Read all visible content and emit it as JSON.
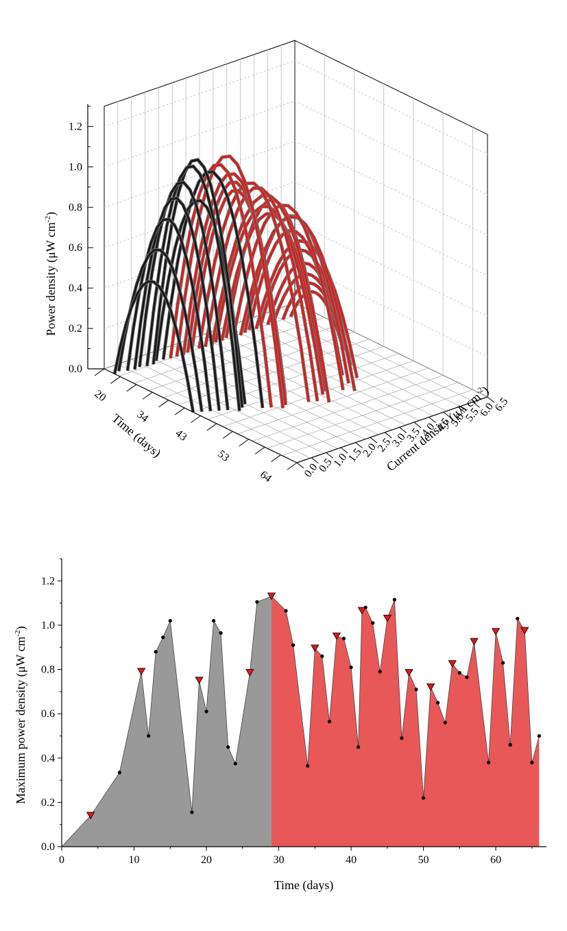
{
  "chart_data": [
    {
      "type": "line",
      "projection": "3d-waterfall",
      "zlabel_main": "Power density (μW cm",
      "zlabel_sup": "-2",
      "zlabel_end": ")",
      "xlabel_main": "Current density (μA cm",
      "xlabel_sup": "-2",
      "xlabel_end": ")",
      "ylabel": "Time (days)",
      "z_ticks": [
        "0.0",
        "0.2",
        "0.4",
        "0.6",
        "0.8",
        "1.0",
        "1.2"
      ],
      "x_ticks": [
        "0.0",
        "0.5",
        "1.0",
        "1.5",
        "2.0",
        "2.5",
        "3.0",
        "3.5",
        "4.0",
        "4.5",
        "5.0",
        "5.5",
        "6.0",
        "6.5"
      ],
      "y_ticks": [
        "20",
        "34",
        "43",
        "53",
        "64"
      ],
      "zlim": [
        0,
        1.3
      ],
      "xlim": [
        0,
        6.5
      ],
      "grid": true,
      "series_colors": {
        "before": "#1a1a1a",
        "after": "#d42020"
      },
      "curves_summary": "one power-density curve per measurement day; black curves for early days, red curves for later days"
    },
    {
      "type": "area",
      "xlabel": "Time (days)",
      "ylabel_main": "Maximum power density (μW cm",
      "ylabel_sup": "-2",
      "ylabel_end": ")",
      "xlim": [
        0,
        67
      ],
      "ylim": [
        0,
        1.3
      ],
      "x_ticks": [
        0,
        10,
        20,
        30,
        40,
        50,
        60
      ],
      "y_ticks": [
        "0.0",
        "0.2",
        "0.4",
        "0.6",
        "0.8",
        "1.0",
        "1.2"
      ],
      "split_day": 29,
      "colors": {
        "before": "#999999",
        "after": "#e85858",
        "triangle": "#e01818",
        "point": "#000000"
      },
      "points": [
        {
          "x": 0,
          "y": 0.0
        },
        {
          "x": 4,
          "y": 0.14,
          "marker": "triangle"
        },
        {
          "x": 8,
          "y": 0.335
        },
        {
          "x": 11,
          "y": 0.79,
          "marker": "triangle"
        },
        {
          "x": 12,
          "y": 0.5
        },
        {
          "x": 13,
          "y": 0.88
        },
        {
          "x": 14,
          "y": 0.945
        },
        {
          "x": 15,
          "y": 1.02
        },
        {
          "x": 18,
          "y": 0.155
        },
        {
          "x": 19,
          "y": 0.75,
          "marker": "triangle"
        },
        {
          "x": 20,
          "y": 0.61
        },
        {
          "x": 21,
          "y": 1.02
        },
        {
          "x": 22,
          "y": 0.965
        },
        {
          "x": 23,
          "y": 0.45
        },
        {
          "x": 24,
          "y": 0.375
        },
        {
          "x": 26,
          "y": 0.785,
          "marker": "triangle"
        },
        {
          "x": 27,
          "y": 1.105
        },
        {
          "x": 29,
          "y": 1.13,
          "marker": "triangle"
        },
        {
          "x": 31,
          "y": 1.065
        },
        {
          "x": 32,
          "y": 0.91
        },
        {
          "x": 34,
          "y": 0.365
        },
        {
          "x": 35,
          "y": 0.895,
          "marker": "triangle"
        },
        {
          "x": 36,
          "y": 0.86
        },
        {
          "x": 37,
          "y": 0.565
        },
        {
          "x": 38,
          "y": 0.95,
          "marker": "triangle"
        },
        {
          "x": 39,
          "y": 0.94
        },
        {
          "x": 40,
          "y": 0.81
        },
        {
          "x": 41,
          "y": 0.45
        },
        {
          "x": 41.5,
          "y": 1.065,
          "marker": "triangle"
        },
        {
          "x": 42,
          "y": 1.08
        },
        {
          "x": 43,
          "y": 1.01
        },
        {
          "x": 44,
          "y": 0.79
        },
        {
          "x": 45,
          "y": 1.03,
          "marker": "triangle"
        },
        {
          "x": 46,
          "y": 1.115
        },
        {
          "x": 47,
          "y": 0.49
        },
        {
          "x": 48,
          "y": 0.785,
          "marker": "triangle"
        },
        {
          "x": 49,
          "y": 0.71
        },
        {
          "x": 50,
          "y": 0.22
        },
        {
          "x": 51,
          "y": 0.72,
          "marker": "triangle"
        },
        {
          "x": 52,
          "y": 0.65
        },
        {
          "x": 53,
          "y": 0.56
        },
        {
          "x": 54,
          "y": 0.825,
          "marker": "triangle"
        },
        {
          "x": 55,
          "y": 0.785
        },
        {
          "x": 56,
          "y": 0.765
        },
        {
          "x": 57,
          "y": 0.925,
          "marker": "triangle"
        },
        {
          "x": 59,
          "y": 0.38
        },
        {
          "x": 60,
          "y": 0.97,
          "marker": "triangle"
        },
        {
          "x": 61,
          "y": 0.83
        },
        {
          "x": 62,
          "y": 0.46
        },
        {
          "x": 63,
          "y": 1.03
        },
        {
          "x": 64,
          "y": 0.975,
          "marker": "triangle"
        },
        {
          "x": 65,
          "y": 0.38
        },
        {
          "x": 66,
          "y": 0.5
        }
      ]
    }
  ]
}
